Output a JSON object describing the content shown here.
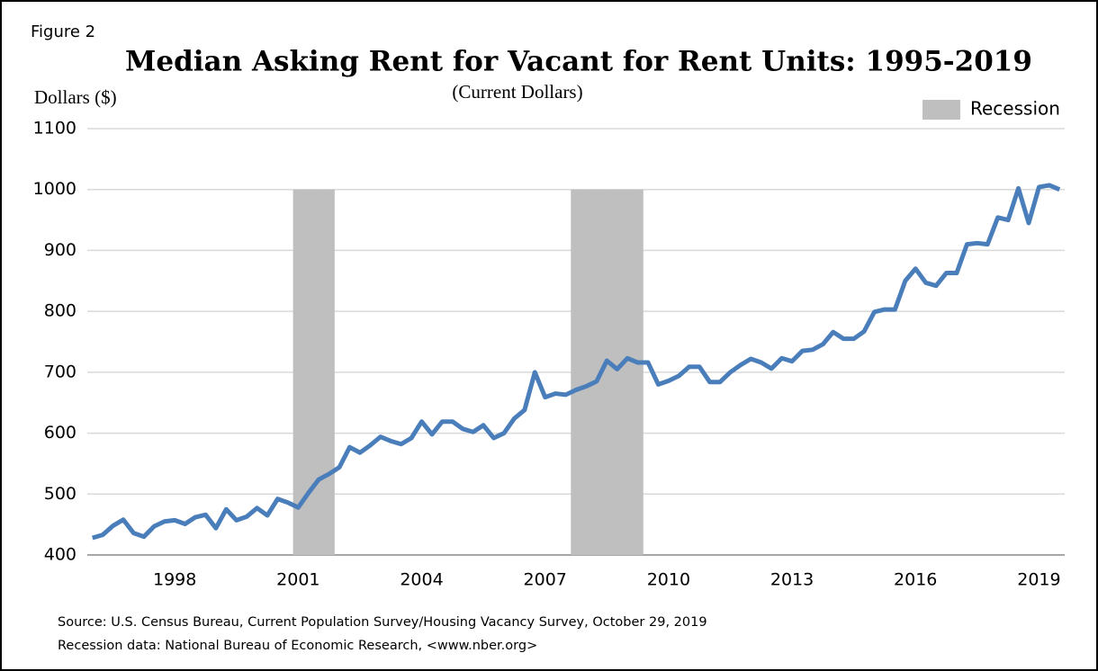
{
  "figure_label": "Figure 2",
  "source": [
    "Source: U.S. Census Bureau, Current Population Survey/Housing Vacancy Survey, October 29, 2019",
    "Recession data: National Bureau of Economic Research, <www.nber.org>"
  ],
  "chart_data": {
    "type": "line",
    "title": "Median Asking Rent for Vacant for Rent Units: 1995-2019",
    "subtitle": "(Current Dollars)",
    "y_label": "Dollars ($)",
    "categories": [
      null,
      null,
      null,
      null,
      null,
      null,
      null,
      null,
      "1998",
      null,
      null,
      null,
      null,
      null,
      null,
      null,
      null,
      null,
      null,
      null,
      "2001",
      null,
      null,
      null,
      null,
      null,
      null,
      null,
      null,
      null,
      null,
      null,
      "2004",
      null,
      null,
      null,
      null,
      null,
      null,
      null,
      null,
      null,
      null,
      null,
      "2007",
      null,
      null,
      null,
      null,
      null,
      null,
      null,
      null,
      null,
      null,
      null,
      "2010",
      null,
      null,
      null,
      null,
      null,
      null,
      null,
      null,
      null,
      null,
      null,
      "2013",
      null,
      null,
      null,
      null,
      null,
      null,
      null,
      null,
      null,
      null,
      null,
      "2016",
      null,
      null,
      null,
      null,
      null,
      null,
      null,
      null,
      null,
      null,
      null,
      "2019",
      null,
      null
    ],
    "series": [
      {
        "color": "#4a7ebb",
        "values": [
          428,
          433,
          448,
          458,
          436,
          430,
          447,
          455,
          457,
          451,
          462,
          466,
          444,
          475,
          457,
          463,
          477,
          465,
          492,
          486,
          478,
          502,
          524,
          533,
          544,
          577,
          568,
          580,
          594,
          587,
          582,
          592,
          619,
          598,
          619,
          619,
          607,
          602,
          613,
          592,
          600,
          624,
          638,
          700,
          659,
          665,
          663,
          671,
          677,
          685,
          719,
          705,
          723,
          716,
          716,
          680,
          686,
          694,
          709,
          709,
          684,
          684,
          700,
          712,
          722,
          716,
          706,
          723,
          718,
          735,
          737,
          746,
          766,
          755,
          755,
          767,
          799,
          803,
          803,
          850,
          870,
          847,
          842,
          863,
          863,
          910,
          912,
          910,
          954,
          950,
          1002,
          945,
          1004,
          1007,
          1000
        ]
      },
      {
        "name": "Recession",
        "type": "bar",
        "color": "#bfbfbf",
        "values": [
          null,
          null,
          null,
          null,
          null,
          null,
          null,
          null,
          null,
          null,
          null,
          null,
          null,
          null,
          null,
          null,
          null,
          null,
          null,
          null,
          1000,
          1000,
          1000,
          1000,
          null,
          null,
          null,
          null,
          null,
          null,
          null,
          null,
          null,
          null,
          null,
          null,
          null,
          null,
          null,
          null,
          null,
          null,
          null,
          null,
          null,
          null,
          null,
          1000,
          1000,
          1000,
          1000,
          1000,
          1000,
          1000,
          null,
          null,
          null,
          null,
          null,
          null,
          null,
          null,
          null,
          null,
          null,
          null,
          null,
          null,
          null,
          null,
          null,
          null,
          null,
          null,
          null,
          null,
          null,
          null,
          null,
          null,
          null,
          null,
          null,
          null,
          null,
          null,
          null,
          null,
          null,
          null,
          null,
          null,
          null,
          null,
          null
        ]
      }
    ],
    "ylim": [
      400,
      1100
    ],
    "yticks": [
      400,
      500,
      600,
      700,
      800,
      900,
      1000,
      1100
    ],
    "grid": true
  }
}
